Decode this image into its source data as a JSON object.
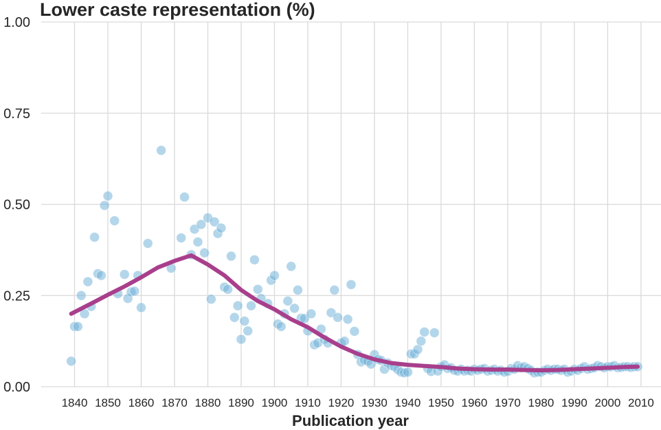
{
  "chart_data": {
    "type": "scatter",
    "title": "Lower caste representation (%)",
    "xlabel": "Publication year",
    "ylabel": "",
    "xticks": [
      1840,
      1850,
      1860,
      1870,
      1880,
      1890,
      1900,
      1910,
      1920,
      1930,
      1940,
      1950,
      1960,
      1970,
      1980,
      1990,
      2000,
      2010
    ],
    "yticks": [
      "0.00",
      "0.25",
      "0.50",
      "0.75",
      "1.00"
    ],
    "xlim": [
      1830,
      2016
    ],
    "ylim": [
      0,
      1
    ],
    "grid": true,
    "colors": {
      "points": "#6aaed6",
      "trend": "#a83f8c",
      "grid": "#d9d9d9",
      "text": "#262626"
    },
    "series": [
      {
        "type": "scatter",
        "points": [
          [
            1839,
            0.07
          ],
          [
            1840,
            0.165
          ],
          [
            1841,
            0.165
          ],
          [
            1842,
            0.25
          ],
          [
            1843,
            0.2
          ],
          [
            1844,
            0.288
          ],
          [
            1845,
            0.22
          ],
          [
            1846,
            0.41
          ],
          [
            1847,
            0.31
          ],
          [
            1848,
            0.305
          ],
          [
            1849,
            0.497
          ],
          [
            1850,
            0.523
          ],
          [
            1852,
            0.455
          ],
          [
            1853,
            0.255
          ],
          [
            1855,
            0.308
          ],
          [
            1856,
            0.242
          ],
          [
            1857,
            0.26
          ],
          [
            1858,
            0.262
          ],
          [
            1859,
            0.305
          ],
          [
            1860,
            0.217
          ],
          [
            1862,
            0.393
          ],
          [
            1866,
            0.648
          ],
          [
            1869,
            0.325
          ],
          [
            1872,
            0.408
          ],
          [
            1873,
            0.52
          ],
          [
            1875,
            0.362
          ],
          [
            1876,
            0.432
          ],
          [
            1877,
            0.397
          ],
          [
            1878,
            0.445
          ],
          [
            1879,
            0.367
          ],
          [
            1880,
            0.463
          ],
          [
            1881,
            0.24
          ],
          [
            1882,
            0.452
          ],
          [
            1883,
            0.42
          ],
          [
            1884,
            0.435
          ],
          [
            1885,
            0.273
          ],
          [
            1886,
            0.267
          ],
          [
            1887,
            0.358
          ],
          [
            1888,
            0.19
          ],
          [
            1889,
            0.222
          ],
          [
            1890,
            0.13
          ],
          [
            1891,
            0.18
          ],
          [
            1892,
            0.153
          ],
          [
            1893,
            0.222
          ],
          [
            1894,
            0.348
          ],
          [
            1895,
            0.267
          ],
          [
            1896,
            0.242
          ],
          [
            1898,
            0.228
          ],
          [
            1899,
            0.292
          ],
          [
            1900,
            0.305
          ],
          [
            1901,
            0.172
          ],
          [
            1902,
            0.165
          ],
          [
            1903,
            0.2
          ],
          [
            1904,
            0.235
          ],
          [
            1905,
            0.33
          ],
          [
            1906,
            0.215
          ],
          [
            1907,
            0.265
          ],
          [
            1908,
            0.188
          ],
          [
            1909,
            0.187
          ],
          [
            1910,
            0.153
          ],
          [
            1911,
            0.2
          ],
          [
            1912,
            0.115
          ],
          [
            1913,
            0.12
          ],
          [
            1914,
            0.158
          ],
          [
            1915,
            0.13
          ],
          [
            1916,
            0.12
          ],
          [
            1917,
            0.203
          ],
          [
            1918,
            0.265
          ],
          [
            1919,
            0.19
          ],
          [
            1920,
            0.12
          ],
          [
            1921,
            0.125
          ],
          [
            1922,
            0.185
          ],
          [
            1923,
            0.28
          ],
          [
            1924,
            0.152
          ],
          [
            1925,
            0.088
          ],
          [
            1926,
            0.068
          ],
          [
            1927,
            0.073
          ],
          [
            1928,
            0.07
          ],
          [
            1929,
            0.062
          ],
          [
            1930,
            0.088
          ],
          [
            1931,
            0.075
          ],
          [
            1932,
            0.072
          ],
          [
            1933,
            0.048
          ],
          [
            1934,
            0.065
          ],
          [
            1935,
            0.058
          ],
          [
            1936,
            0.055
          ],
          [
            1937,
            0.047
          ],
          [
            1938,
            0.04
          ],
          [
            1939,
            0.038
          ],
          [
            1940,
            0.04
          ],
          [
            1941,
            0.09
          ],
          [
            1942,
            0.09
          ],
          [
            1943,
            0.102
          ],
          [
            1944,
            0.125
          ],
          [
            1945,
            0.15
          ],
          [
            1946,
            0.05
          ],
          [
            1947,
            0.042
          ],
          [
            1948,
            0.148
          ],
          [
            1949,
            0.043
          ],
          [
            1950,
            0.055
          ],
          [
            1951,
            0.06
          ],
          [
            1952,
            0.05
          ],
          [
            1953,
            0.052
          ],
          [
            1954,
            0.045
          ],
          [
            1955,
            0.043
          ],
          [
            1956,
            0.048
          ],
          [
            1957,
            0.043
          ],
          [
            1958,
            0.045
          ],
          [
            1959,
            0.043
          ],
          [
            1960,
            0.048
          ],
          [
            1961,
            0.045
          ],
          [
            1962,
            0.048
          ],
          [
            1963,
            0.05
          ],
          [
            1964,
            0.043
          ],
          [
            1965,
            0.045
          ],
          [
            1966,
            0.048
          ],
          [
            1967,
            0.043
          ],
          [
            1968,
            0.045
          ],
          [
            1969,
            0.04
          ],
          [
            1970,
            0.042
          ],
          [
            1971,
            0.05
          ],
          [
            1972,
            0.048
          ],
          [
            1973,
            0.058
          ],
          [
            1974,
            0.052
          ],
          [
            1975,
            0.055
          ],
          [
            1976,
            0.05
          ],
          [
            1977,
            0.045
          ],
          [
            1978,
            0.038
          ],
          [
            1979,
            0.04
          ],
          [
            1980,
            0.04
          ],
          [
            1981,
            0.045
          ],
          [
            1982,
            0.048
          ],
          [
            1983,
            0.045
          ],
          [
            1984,
            0.048
          ],
          [
            1985,
            0.048
          ],
          [
            1986,
            0.045
          ],
          [
            1987,
            0.048
          ],
          [
            1988,
            0.04
          ],
          [
            1989,
            0.043
          ],
          [
            1990,
            0.048
          ],
          [
            1991,
            0.045
          ],
          [
            1992,
            0.05
          ],
          [
            1993,
            0.055
          ],
          [
            1994,
            0.048
          ],
          [
            1995,
            0.05
          ],
          [
            1996,
            0.052
          ],
          [
            1997,
            0.058
          ],
          [
            1998,
            0.055
          ],
          [
            1999,
            0.052
          ],
          [
            2000,
            0.055
          ],
          [
            2001,
            0.055
          ],
          [
            2002,
            0.058
          ],
          [
            2003,
            0.052
          ],
          [
            2004,
            0.053
          ],
          [
            2005,
            0.055
          ],
          [
            2006,
            0.055
          ],
          [
            2007,
            0.053
          ],
          [
            2008,
            0.055
          ],
          [
            2009,
            0.055
          ]
        ]
      },
      {
        "type": "line",
        "points": [
          [
            1839,
            0.2
          ],
          [
            1845,
            0.228
          ],
          [
            1850,
            0.252
          ],
          [
            1855,
            0.275
          ],
          [
            1860,
            0.3
          ],
          [
            1865,
            0.327
          ],
          [
            1870,
            0.345
          ],
          [
            1875,
            0.36
          ],
          [
            1880,
            0.335
          ],
          [
            1885,
            0.305
          ],
          [
            1890,
            0.265
          ],
          [
            1895,
            0.235
          ],
          [
            1900,
            0.212
          ],
          [
            1905,
            0.185
          ],
          [
            1910,
            0.163
          ],
          [
            1915,
            0.135
          ],
          [
            1920,
            0.11
          ],
          [
            1925,
            0.09
          ],
          [
            1930,
            0.075
          ],
          [
            1935,
            0.065
          ],
          [
            1940,
            0.06
          ],
          [
            1945,
            0.057
          ],
          [
            1950,
            0.054
          ],
          [
            1955,
            0.05
          ],
          [
            1960,
            0.048
          ],
          [
            1965,
            0.047
          ],
          [
            1970,
            0.047
          ],
          [
            1975,
            0.046
          ],
          [
            1980,
            0.045
          ],
          [
            1985,
            0.046
          ],
          [
            1990,
            0.048
          ],
          [
            1995,
            0.05
          ],
          [
            2000,
            0.052
          ],
          [
            2005,
            0.054
          ],
          [
            2009,
            0.055
          ]
        ]
      }
    ]
  }
}
